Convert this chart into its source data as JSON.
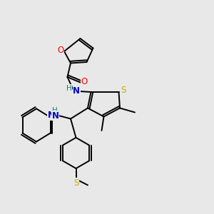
{
  "background_color": "#e8e8e8",
  "atom_colors": {
    "C": "#000000",
    "N": "#0000cc",
    "O": "#ff0000",
    "S": "#ccaa00",
    "H": "#008888"
  },
  "figsize": [
    3.0,
    3.0
  ],
  "dpi": 100,
  "xlim": [
    0,
    10
  ],
  "ylim": [
    0,
    10
  ]
}
